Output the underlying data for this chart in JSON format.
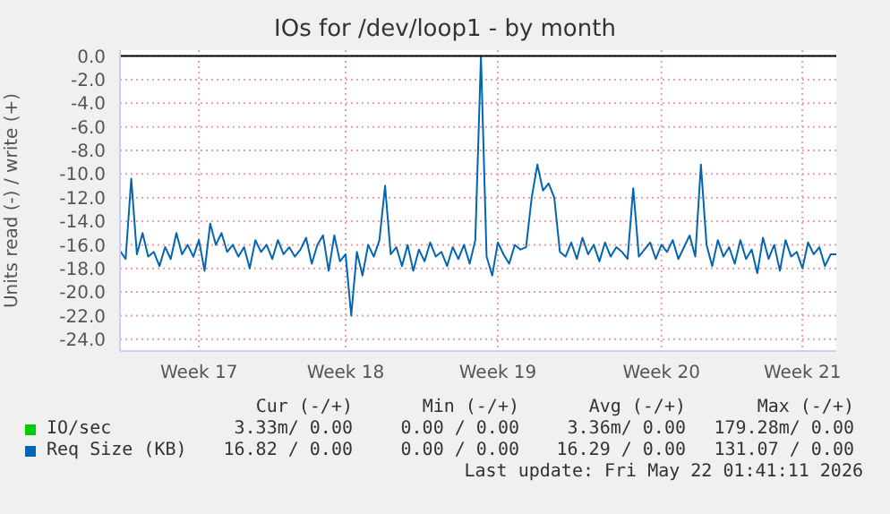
{
  "chart_data": {
    "type": "line",
    "title": "IOs for /dev/loop1 - by month",
    "ylabel": "Units read (-) / write (+)",
    "categories": [
      null,
      null,
      null,
      null,
      null,
      null,
      null,
      null,
      null,
      null,
      null,
      null,
      null,
      null,
      "Week 17",
      null,
      null,
      null,
      null,
      null,
      null,
      null,
      null,
      null,
      null,
      null,
      null,
      null,
      null,
      null,
      null,
      null,
      null,
      null,
      null,
      null,
      null,
      null,
      null,
      null,
      "Week 18",
      null,
      null,
      null,
      null,
      null,
      null,
      null,
      null,
      null,
      null,
      null,
      null,
      null,
      null,
      null,
      null,
      null,
      null,
      null,
      null,
      null,
      null,
      null,
      null,
      null,
      null,
      "Week 19",
      null,
      null,
      null,
      null,
      null,
      null,
      null,
      null,
      null,
      null,
      null,
      null,
      null,
      null,
      null,
      null,
      null,
      null,
      null,
      null,
      null,
      null,
      null,
      null,
      null,
      null,
      null,
      null,
      "Week 20",
      null,
      null,
      null,
      null,
      null,
      null,
      null,
      null,
      null,
      null,
      null,
      null,
      null,
      null,
      null,
      null,
      null,
      null,
      null,
      null,
      null,
      null,
      null,
      null,
      "Week 21",
      null,
      null,
      null,
      null,
      null,
      null
    ],
    "ylim": [
      -25,
      0.5
    ],
    "yticks": [
      {
        "value": -24,
        "label": "-24.0"
      },
      {
        "value": -22,
        "label": "-22.0"
      },
      {
        "value": -20,
        "label": "-20.0"
      },
      {
        "value": -18,
        "label": "-18.0"
      },
      {
        "value": -16,
        "label": "-16.0"
      },
      {
        "value": -14,
        "label": "-14.0"
      },
      {
        "value": -12,
        "label": "-12.0"
      },
      {
        "value": -10,
        "label": "-10.0"
      },
      {
        "value": -8,
        "label": "-8.0"
      },
      {
        "value": -6,
        "label": "-6.0"
      },
      {
        "value": -4,
        "label": "-4.0"
      },
      {
        "value": -2,
        "label": "-2.0"
      },
      {
        "value": 0,
        "label": "0.0"
      }
    ],
    "grid": true,
    "legend": "bottom",
    "marker": "none",
    "line_style": "solid",
    "ref_lines": [
      {
        "axis": "y",
        "value": 0,
        "color": "#000000"
      }
    ],
    "series": [
      {
        "name": "IO/sec",
        "color": "#00cc00",
        "values": [
          null,
          null,
          null,
          null,
          null,
          null,
          null,
          null,
          null,
          null,
          null,
          null,
          null,
          null,
          null,
          null,
          null,
          null,
          null,
          null,
          null,
          null,
          null,
          null,
          null,
          null,
          null,
          null,
          null,
          null,
          null,
          null,
          null,
          null,
          null,
          null,
          null,
          null,
          null,
          null,
          null,
          null,
          null,
          null,
          null,
          null,
          null,
          null,
          null,
          null,
          null,
          null,
          null,
          null,
          null,
          null,
          null,
          null,
          null,
          null,
          null,
          null,
          null,
          null,
          null,
          null,
          null,
          null,
          null,
          null,
          null,
          null,
          null,
          null,
          null,
          null,
          null,
          null,
          null,
          null,
          null,
          null,
          null,
          null,
          null,
          null,
          null,
          null,
          null,
          null,
          null,
          null,
          null,
          null,
          null,
          null,
          null,
          null,
          null,
          null,
          null,
          null,
          null,
          null,
          null,
          null,
          null,
          null,
          null,
          null,
          null,
          null,
          null,
          null,
          null,
          null,
          null,
          null,
          null,
          null,
          null,
          null,
          null,
          null,
          null,
          null,
          null,
          null
        ]
      },
      {
        "name": "Req Size (KB)",
        "color": "#0066b3",
        "values": [
          -16.5,
          -17.2,
          -10.4,
          -16.8,
          -15.0,
          -17.0,
          -16.6,
          -17.8,
          -16.2,
          -17.2,
          -15.0,
          -16.8,
          -16.0,
          -17.0,
          -15.6,
          -18.2,
          -14.2,
          -16.0,
          -15.0,
          -16.6,
          -16.0,
          -17.0,
          -16.2,
          -18.0,
          -15.6,
          -16.6,
          -16.0,
          -17.2,
          -15.6,
          -16.8,
          -16.2,
          -17.0,
          -16.4,
          -15.4,
          -17.6,
          -16.0,
          -15.2,
          -18.2,
          -15.2,
          -17.4,
          -16.8,
          -22.0,
          -16.6,
          -18.6,
          -16.0,
          -17.0,
          -15.6,
          -11.0,
          -16.8,
          -16.2,
          -17.8,
          -16.0,
          -18.2,
          -16.4,
          -17.4,
          -15.8,
          -17.0,
          -16.6,
          -17.8,
          -16.2,
          -17.2,
          -16.0,
          -17.6,
          -15.6,
          0.0,
          -17.0,
          -18.6,
          -15.8,
          -16.8,
          -17.6,
          -16.0,
          -16.4,
          -16.2,
          -12.0,
          -9.2,
          -11.4,
          -10.8,
          -12.0,
          -16.6,
          -17.0,
          -15.8,
          -17.2,
          -15.4,
          -16.8,
          -16.0,
          -17.4,
          -15.8,
          -17.0,
          -16.2,
          -16.6,
          -17.2,
          -11.2,
          -17.0,
          -16.4,
          -15.8,
          -17.2,
          -16.0,
          -16.6,
          -15.6,
          -17.2,
          -16.2,
          -15.2,
          -17.0,
          -9.2,
          -16.0,
          -17.8,
          -15.6,
          -17.0,
          -16.2,
          -17.6,
          -15.6,
          -17.2,
          -16.4,
          -18.4,
          -15.4,
          -17.2,
          -16.0,
          -18.2,
          -15.6,
          -17.0,
          -16.6,
          -18.0,
          -15.8,
          -16.8,
          -16.2,
          -17.8,
          -16.8,
          -16.8
        ]
      }
    ],
    "annotations": [
      "Cur (-/+)",
      "Min (-/+)",
      "Avg (-/+)",
      "Max (-/+)",
      "3.33m/ 0.00",
      "0.00 / 0.00",
      "3.36m/ 0.00",
      "179.28m/ 0.00",
      "16.82 / 0.00",
      "0.00 / 0.00",
      "16.29 / 0.00",
      "131.07 / 0.00",
      "Last update: Fri May 22 01:41:11 2026"
    ]
  }
}
